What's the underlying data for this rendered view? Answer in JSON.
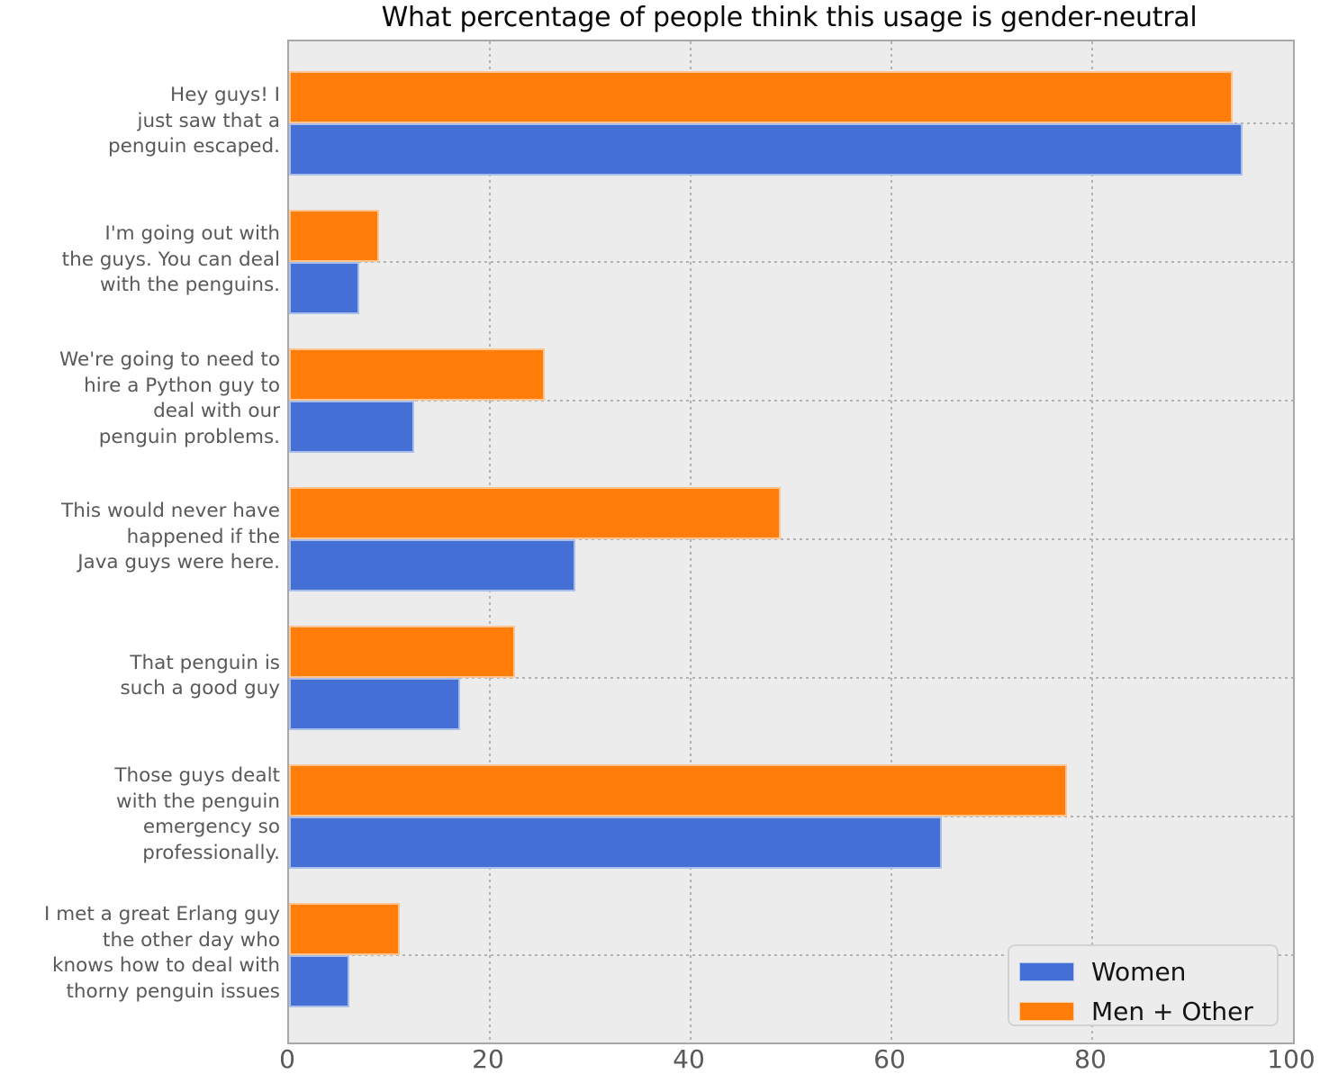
{
  "title": "What percentage of people think this usage is gender-neutral",
  "colors": {
    "women": "#4470D6",
    "men_other": "#FF7D08",
    "plot_background": "#ECECEC",
    "gridline": "#B2B2B2",
    "axis_text": "#595959",
    "title_text": "#0A0A0A"
  },
  "x_axis": {
    "tick_labels": [
      "0",
      "20",
      "40",
      "60",
      "80",
      "100"
    ],
    "min": 0,
    "max": 100
  },
  "legend": {
    "position": "lower right",
    "items": [
      {
        "label": "Women",
        "color": "#4470D6"
      },
      {
        "label": "Men + Other",
        "color": "#FF7D08"
      }
    ]
  },
  "chart_data": {
    "type": "bar",
    "orientation": "horizontal",
    "title": "What percentage of people think this usage is gender-neutral",
    "xlabel": "",
    "ylabel": "",
    "xlim": [
      0,
      100
    ],
    "x_ticks": [
      0,
      20,
      40,
      60,
      80,
      100
    ],
    "grid": "dashed",
    "legend_position": "lower right",
    "categories": [
      {
        "text": "Hey guys! I just saw that a penguin escaped.",
        "lines": [
          "Hey guys! I",
          "just saw that a",
          "penguin escaped."
        ]
      },
      {
        "text": "I'm going out with the guys. You can deal with the penguins.",
        "lines": [
          "I'm going out with",
          "the guys. You can deal",
          "with the penguins."
        ]
      },
      {
        "text": "We're going to need to hire a Python guy to deal with our penguin problems.",
        "lines": [
          "We're going to need to",
          "hire a Python guy to",
          "deal with our",
          "penguin problems."
        ]
      },
      {
        "text": "This would never have happened if the Java guys were here.",
        "lines": [
          "This would never have",
          "happened if the",
          "Java guys were here."
        ]
      },
      {
        "text": "That penguin is such a good guy",
        "lines": [
          "That penguin is",
          "such a good guy"
        ]
      },
      {
        "text": "Those guys dealt with the penguin emergency so professionally.",
        "lines": [
          "Those guys dealt",
          "with the penguin",
          "emergency so",
          "professionally."
        ]
      },
      {
        "text": "I met a great Erlang guy the other day who knows how to deal with thorny penguin issues",
        "lines": [
          "I met a great Erlang guy",
          "the other day who",
          "knows how to deal with",
          "thorny penguin issues"
        ]
      }
    ],
    "series": [
      {
        "name": "Women",
        "color": "#4470D6",
        "values": [
          95,
          7,
          12.5,
          28.5,
          17,
          65,
          6
        ]
      },
      {
        "name": "Men + Other",
        "color": "#FF7D08",
        "values": [
          94,
          9,
          25.5,
          49,
          22.5,
          77.5,
          11
        ]
      }
    ]
  }
}
